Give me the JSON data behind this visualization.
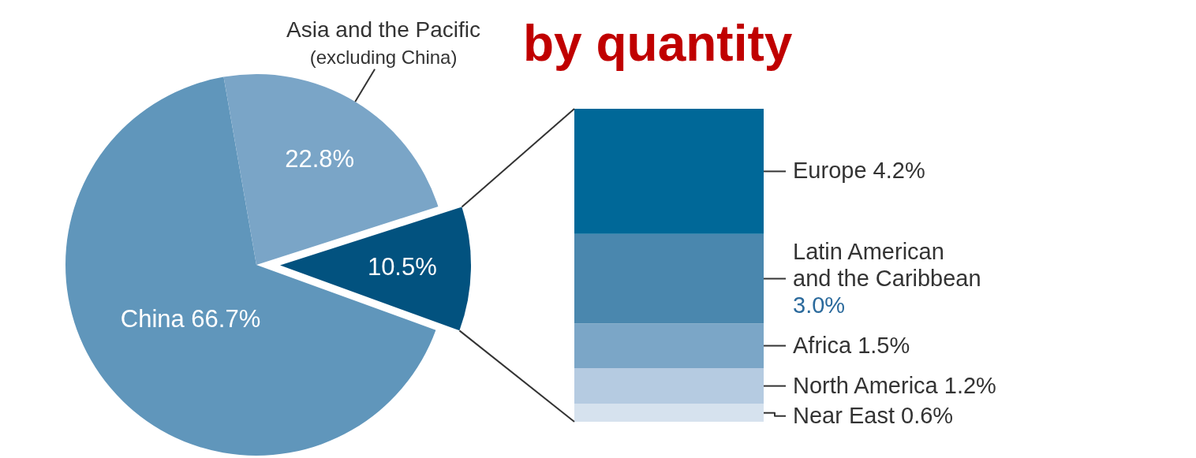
{
  "chart_data": [
    {
      "type": "pie",
      "title": "by quantity",
      "categories": [
        "China",
        "Asia and the Pacific\n(excluding China)",
        null
      ],
      "values": [
        66.7,
        22.8,
        10.5
      ],
      "colors": [
        "#6096bb",
        "#7aa5c7",
        "#02527f"
      ],
      "value_labels": [
        "66.7%",
        "22.8%",
        "10.5%"
      ]
    },
    {
      "type": "bar",
      "stacked": true,
      "categories": [
        null
      ],
      "series": [
        {
          "name": "Near East",
          "color": "#d6e2ee",
          "values": [
            0.6
          ],
          "value_labels": [
            "0.6%"
          ]
        },
        {
          "name": "North America",
          "color": "#b5cbe1",
          "values": [
            1.2
          ],
          "value_labels": [
            "1.2%"
          ]
        },
        {
          "name": "Africa",
          "color": "#7ba6c7",
          "values": [
            1.5
          ],
          "value_labels": [
            "1.5%"
          ]
        },
        {
          "name": "Latin American\nand the Caribbean",
          "color": "#4a87ae",
          "values": [
            3.0
          ],
          "value_labels": [
            "3.0%"
          ]
        },
        {
          "name": "Europe",
          "color": "#006898",
          "values": [
            4.2
          ],
          "value_labels": [
            "4.2%"
          ]
        }
      ]
    }
  ]
}
